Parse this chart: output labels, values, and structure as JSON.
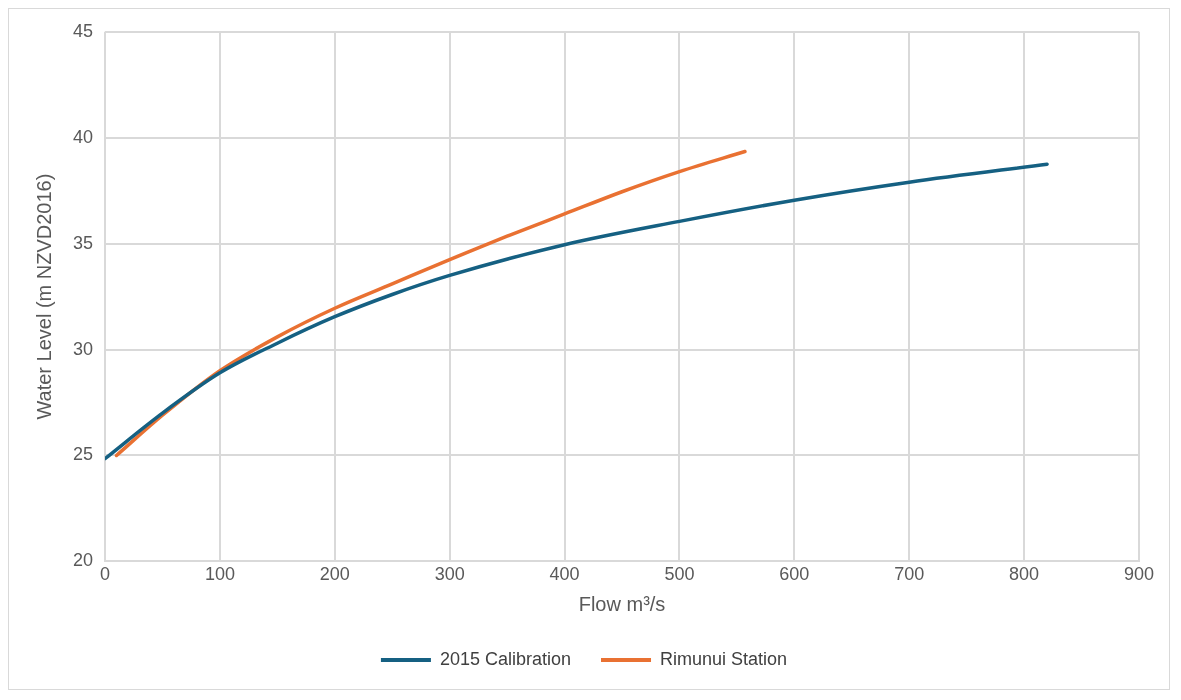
{
  "chart_data": {
    "type": "line",
    "xlabel": "Flow m³/s",
    "ylabel": "Water Level (m NZVD2016)",
    "xlim": [
      0,
      900
    ],
    "xticks": [
      0,
      100,
      200,
      300,
      400,
      500,
      600,
      700,
      800,
      900
    ],
    "ylim": [
      20,
      45
    ],
    "yticks": [
      20,
      25,
      30,
      35,
      40,
      45
    ],
    "grid": true,
    "legend": "bottom",
    "marker": "none",
    "line_style": "solid",
    "series": [
      {
        "name": "2015 Calibration",
        "color": "#156082",
        "x": [
          0,
          50,
          100,
          150,
          200,
          250,
          300,
          400,
          500,
          600,
          700,
          820
        ],
        "values": [
          24.85,
          27.0,
          28.9,
          30.3,
          31.55,
          32.6,
          33.5,
          34.95,
          36.05,
          37.05,
          37.9,
          38.75
        ]
      },
      {
        "name": "Rimunui Station",
        "color": "#e97132",
        "x": [
          10,
          50,
          100,
          150,
          200,
          250,
          300,
          350,
          400,
          450,
          500,
          557
        ],
        "values": [
          25.0,
          26.9,
          29.0,
          30.6,
          31.95,
          33.1,
          34.25,
          35.35,
          36.4,
          37.45,
          38.4,
          39.35
        ]
      }
    ]
  }
}
